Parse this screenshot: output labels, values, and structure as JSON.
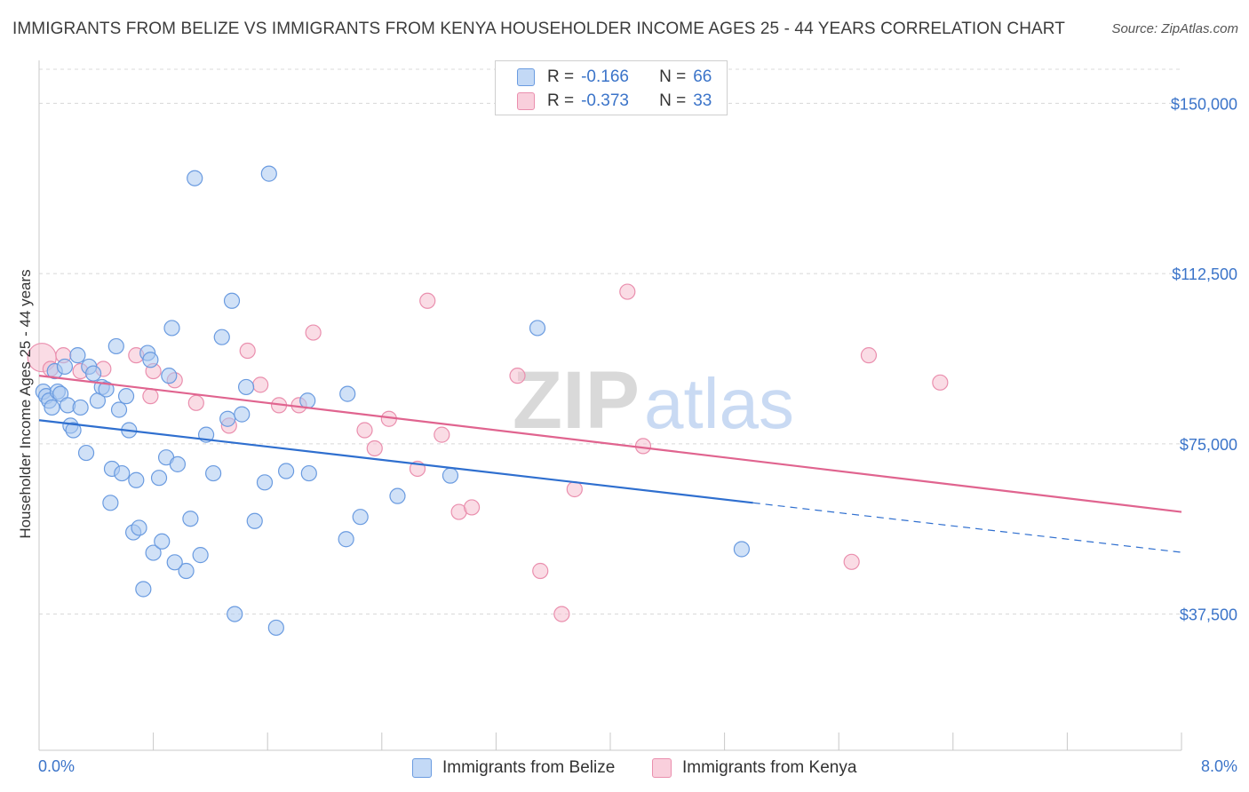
{
  "title": "IMMIGRANTS FROM BELIZE VS IMMIGRANTS FROM KENYA HOUSEHOLDER INCOME AGES 25 - 44 YEARS CORRELATION CHART",
  "source": "Source: ZipAtlas.com",
  "watermark": {
    "zip": "ZIP",
    "atlas": "atlas"
  },
  "legend": {
    "belize": {
      "r_label": "R =",
      "r_value": "-0.166",
      "n_label": "N =",
      "n_value": "66"
    },
    "kenya": {
      "r_label": "R =",
      "r_value": "-0.373",
      "n_label": "N =",
      "n_value": "33"
    }
  },
  "colors": {
    "belize_fill": "#a9c8f0",
    "belize_stroke": "#6a9be0",
    "belize_line": "#2f6fcf",
    "kenya_fill": "#f6bfd0",
    "kenya_stroke": "#ea8fae",
    "kenya_line": "#e0648f",
    "axis_text": "#3b74c9",
    "grid": "#d8d8d8"
  },
  "chart_data": {
    "type": "scatter",
    "title": "IMMIGRANTS FROM BELIZE VS IMMIGRANTS FROM KENYA HOUSEHOLDER INCOME AGES 25 - 44 YEARS CORRELATION CHART",
    "xlabel": "",
    "ylabel": "Householder Income Ages 25 - 44 years",
    "xlim": [
      0,
      8
    ],
    "ylim": [
      7500,
      157500
    ],
    "x_tick_labels": [
      "0.0%",
      "8.0%"
    ],
    "y_ticks": [
      37500,
      75000,
      112500,
      150000
    ],
    "y_tick_labels": [
      "$37,500",
      "$75,000",
      "$112,500",
      "$150,000"
    ],
    "series": [
      {
        "name": "Immigrants from Belize",
        "r": -0.166,
        "n": 66,
        "trend": {
          "x0": 0,
          "y0": 80200,
          "x1": 5.0,
          "y1": 62000,
          "dash_x1": 8.0,
          "dash_y1": 51100
        },
        "points": [
          [
            0.03,
            86500
          ],
          [
            0.05,
            85500
          ],
          [
            0.07,
            84500
          ],
          [
            0.09,
            83000
          ],
          [
            0.11,
            91000
          ],
          [
            0.13,
            86500
          ],
          [
            0.15,
            86000
          ],
          [
            0.18,
            92000
          ],
          [
            0.2,
            83500
          ],
          [
            0.22,
            79000
          ],
          [
            0.24,
            78000
          ],
          [
            0.27,
            94500
          ],
          [
            0.29,
            83000
          ],
          [
            0.33,
            73000
          ],
          [
            0.35,
            92000
          ],
          [
            0.38,
            90500
          ],
          [
            0.41,
            84500
          ],
          [
            0.44,
            87500
          ],
          [
            0.47,
            87000
          ],
          [
            0.5,
            62000
          ],
          [
            0.51,
            69500
          ],
          [
            0.54,
            96500
          ],
          [
            0.56,
            82500
          ],
          [
            0.58,
            68500
          ],
          [
            0.61,
            85500
          ],
          [
            0.63,
            78000
          ],
          [
            0.66,
            55500
          ],
          [
            0.68,
            67000
          ],
          [
            0.7,
            56500
          ],
          [
            0.73,
            43000
          ],
          [
            0.76,
            95000
          ],
          [
            0.78,
            93500
          ],
          [
            0.8,
            51000
          ],
          [
            0.84,
            67500
          ],
          [
            0.86,
            53500
          ],
          [
            0.89,
            72000
          ],
          [
            0.91,
            90000
          ],
          [
            0.93,
            100500
          ],
          [
            0.97,
            70500
          ],
          [
            1.03,
            47000
          ],
          [
            1.06,
            58500
          ],
          [
            1.09,
            133500
          ],
          [
            1.13,
            50500
          ],
          [
            1.17,
            77000
          ],
          [
            1.22,
            68500
          ],
          [
            1.28,
            98500
          ],
          [
            1.32,
            80500
          ],
          [
            1.35,
            106500
          ],
          [
            1.37,
            37500
          ],
          [
            1.42,
            81500
          ],
          [
            1.45,
            87500
          ],
          [
            1.51,
            58000
          ],
          [
            1.58,
            66500
          ],
          [
            1.61,
            134500
          ],
          [
            1.66,
            34500
          ],
          [
            1.73,
            69000
          ],
          [
            1.88,
            84500
          ],
          [
            1.89,
            68500
          ],
          [
            2.15,
            54000
          ],
          [
            2.16,
            86000
          ],
          [
            2.25,
            58900
          ],
          [
            2.51,
            63500
          ],
          [
            2.88,
            68000
          ],
          [
            3.49,
            100500
          ],
          [
            4.92,
            51800
          ],
          [
            0.95,
            48900
          ]
        ]
      },
      {
        "name": "Immigrants from Kenya",
        "r": -0.373,
        "n": 33,
        "trend": {
          "x0": 0,
          "y0": 90000,
          "x1": 8.0,
          "y1": 60000
        },
        "points": [
          [
            0.02,
            94000
          ],
          [
            0.08,
            91500
          ],
          [
            0.17,
            94500
          ],
          [
            0.29,
            91000
          ],
          [
            0.45,
            91500
          ],
          [
            0.68,
            94500
          ],
          [
            0.78,
            85500
          ],
          [
            0.8,
            91000
          ],
          [
            0.95,
            89000
          ],
          [
            1.1,
            84000
          ],
          [
            1.33,
            79000
          ],
          [
            1.46,
            95500
          ],
          [
            1.55,
            88000
          ],
          [
            1.68,
            83500
          ],
          [
            1.82,
            83500
          ],
          [
            1.92,
            99500
          ],
          [
            2.28,
            78000
          ],
          [
            2.35,
            74000
          ],
          [
            2.45,
            80500
          ],
          [
            2.65,
            69500
          ],
          [
            2.72,
            106500
          ],
          [
            2.82,
            77000
          ],
          [
            2.94,
            60000
          ],
          [
            3.03,
            61000
          ],
          [
            3.35,
            90000
          ],
          [
            3.51,
            47000
          ],
          [
            3.66,
            37500
          ],
          [
            3.75,
            65000
          ],
          [
            4.12,
            108500
          ],
          [
            4.23,
            74500
          ],
          [
            5.69,
            49000
          ],
          [
            5.81,
            94500
          ],
          [
            6.31,
            88500
          ]
        ]
      }
    ]
  }
}
